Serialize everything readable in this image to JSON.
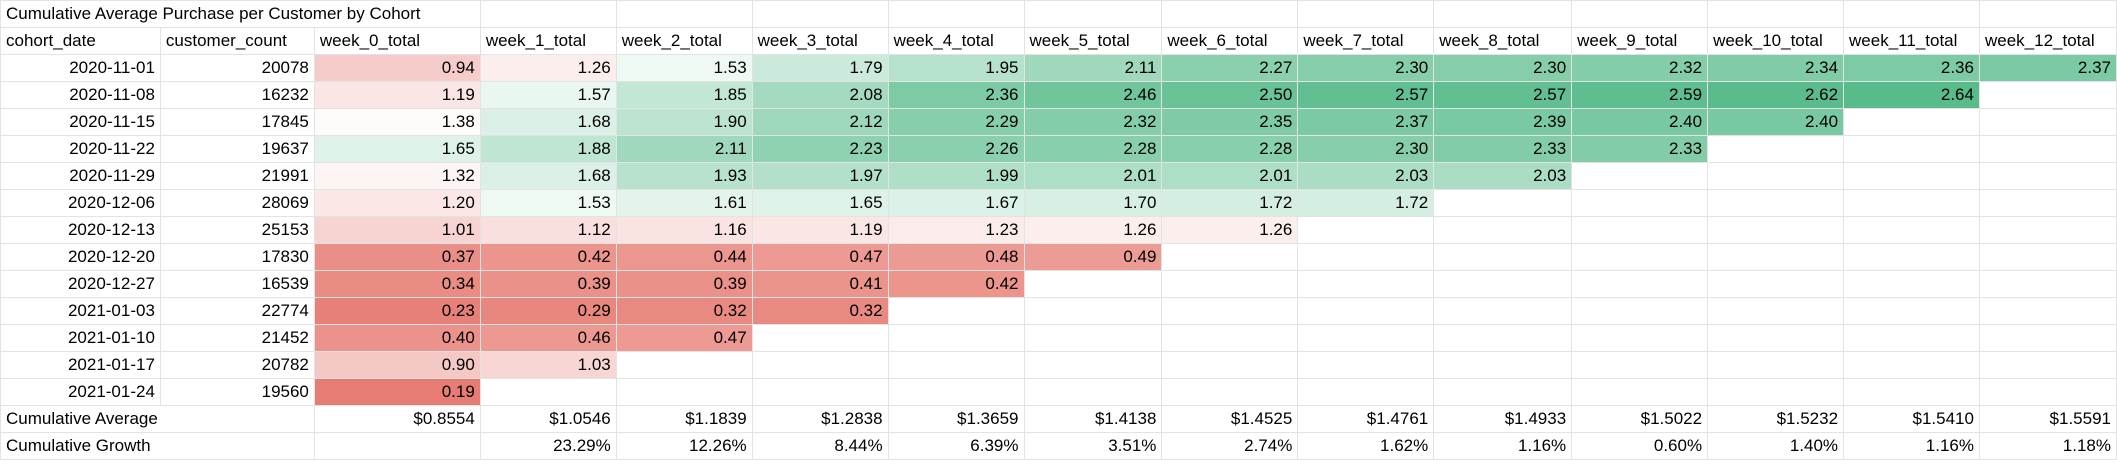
{
  "title": "Cumulative Average Purchase per Customer by Cohort",
  "columns": [
    "cohort_date",
    "customer_count",
    "week_0_total",
    "week_1_total",
    "week_2_total",
    "week_3_total",
    "week_4_total",
    "week_5_total",
    "week_6_total",
    "week_7_total",
    "week_8_total",
    "week_9_total",
    "week_10_total",
    "week_11_total",
    "week_12_total"
  ],
  "rows": [
    {
      "cohort_date": "2020-11-01",
      "customer_count": "20078",
      "weeks": [
        "0.94",
        "1.26",
        "1.53",
        "1.79",
        "1.95",
        "2.11",
        "2.27",
        "2.30",
        "2.30",
        "2.32",
        "2.34",
        "2.36",
        "2.37"
      ]
    },
    {
      "cohort_date": "2020-11-08",
      "customer_count": "16232",
      "weeks": [
        "1.19",
        "1.57",
        "1.85",
        "2.08",
        "2.36",
        "2.46",
        "2.50",
        "2.57",
        "2.57",
        "2.59",
        "2.62",
        "2.64"
      ]
    },
    {
      "cohort_date": "2020-11-15",
      "customer_count": "17845",
      "weeks": [
        "1.38",
        "1.68",
        "1.90",
        "2.12",
        "2.29",
        "2.32",
        "2.35",
        "2.37",
        "2.39",
        "2.40",
        "2.40"
      ]
    },
    {
      "cohort_date": "2020-11-22",
      "customer_count": "19637",
      "weeks": [
        "1.65",
        "1.88",
        "2.11",
        "2.23",
        "2.26",
        "2.28",
        "2.28",
        "2.30",
        "2.33",
        "2.33"
      ]
    },
    {
      "cohort_date": "2020-11-29",
      "customer_count": "21991",
      "weeks": [
        "1.32",
        "1.68",
        "1.93",
        "1.97",
        "1.99",
        "2.01",
        "2.01",
        "2.03",
        "2.03"
      ]
    },
    {
      "cohort_date": "2020-12-06",
      "customer_count": "28069",
      "weeks": [
        "1.20",
        "1.53",
        "1.61",
        "1.65",
        "1.67",
        "1.70",
        "1.72",
        "1.72"
      ]
    },
    {
      "cohort_date": "2020-12-13",
      "customer_count": "25153",
      "weeks": [
        "1.01",
        "1.12",
        "1.16",
        "1.19",
        "1.23",
        "1.26",
        "1.26"
      ]
    },
    {
      "cohort_date": "2020-12-20",
      "customer_count": "17830",
      "weeks": [
        "0.37",
        "0.42",
        "0.44",
        "0.47",
        "0.48",
        "0.49"
      ]
    },
    {
      "cohort_date": "2020-12-27",
      "customer_count": "16539",
      "weeks": [
        "0.34",
        "0.39",
        "0.39",
        "0.41",
        "0.42"
      ]
    },
    {
      "cohort_date": "2021-01-03",
      "customer_count": "22774",
      "weeks": [
        "0.23",
        "0.29",
        "0.32",
        "0.32"
      ]
    },
    {
      "cohort_date": "2021-01-10",
      "customer_count": "21452",
      "weeks": [
        "0.40",
        "0.46",
        "0.47"
      ]
    },
    {
      "cohort_date": "2021-01-17",
      "customer_count": "20782",
      "weeks": [
        "0.90",
        "1.03"
      ]
    },
    {
      "cohort_date": "2021-01-24",
      "customer_count": "19560",
      "weeks": [
        "0.19"
      ]
    }
  ],
  "summary": [
    {
      "label": "Cumulative Average",
      "weeks": [
        "$0.8554",
        "$1.0546",
        "$1.1839",
        "$1.2838",
        "$1.3659",
        "$1.4138",
        "$1.4525",
        "$1.4761",
        "$1.4933",
        "$1.5022",
        "$1.5232",
        "$1.5410",
        "$1.5591"
      ]
    },
    {
      "label": "Cumulative Growth",
      "weeks": [
        "",
        "23.29%",
        "12.26%",
        "8.44%",
        "6.39%",
        "3.51%",
        "2.74%",
        "1.62%",
        "1.16%",
        "0.60%",
        "1.40%",
        "1.16%",
        "1.18%"
      ]
    }
  ],
  "colors": {
    "scale_low": "#e67c73",
    "scale_mid": "#ffffff",
    "scale_high": "#57bb8a",
    "gridline": "#e2e3e3"
  }
}
